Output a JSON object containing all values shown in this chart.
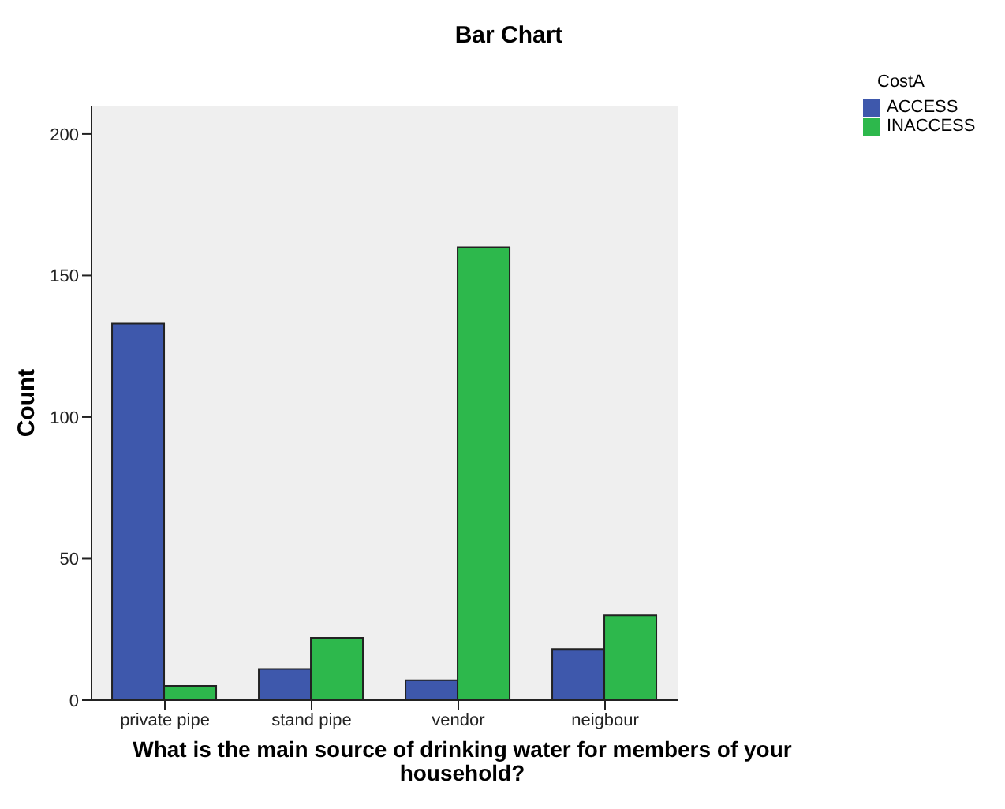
{
  "chart_data": {
    "type": "bar",
    "title": "Bar Chart",
    "xlabel": "What is the main source of drinking water for members of your household?",
    "ylabel": "Count",
    "legend_title": "CostA",
    "legend": "top right",
    "categories": [
      "private pipe",
      "stand pipe",
      "vendor",
      "neigbour"
    ],
    "series": [
      {
        "name": "ACCESS",
        "color": "#3e58ac",
        "values": [
          133,
          11,
          7,
          18
        ]
      },
      {
        "name": "INACCESS",
        "color": "#2db84c",
        "values": [
          5,
          22,
          160,
          30
        ]
      }
    ],
    "ylim": [
      0,
      210
    ],
    "yticks": [
      0,
      50,
      100,
      150,
      200
    ]
  }
}
